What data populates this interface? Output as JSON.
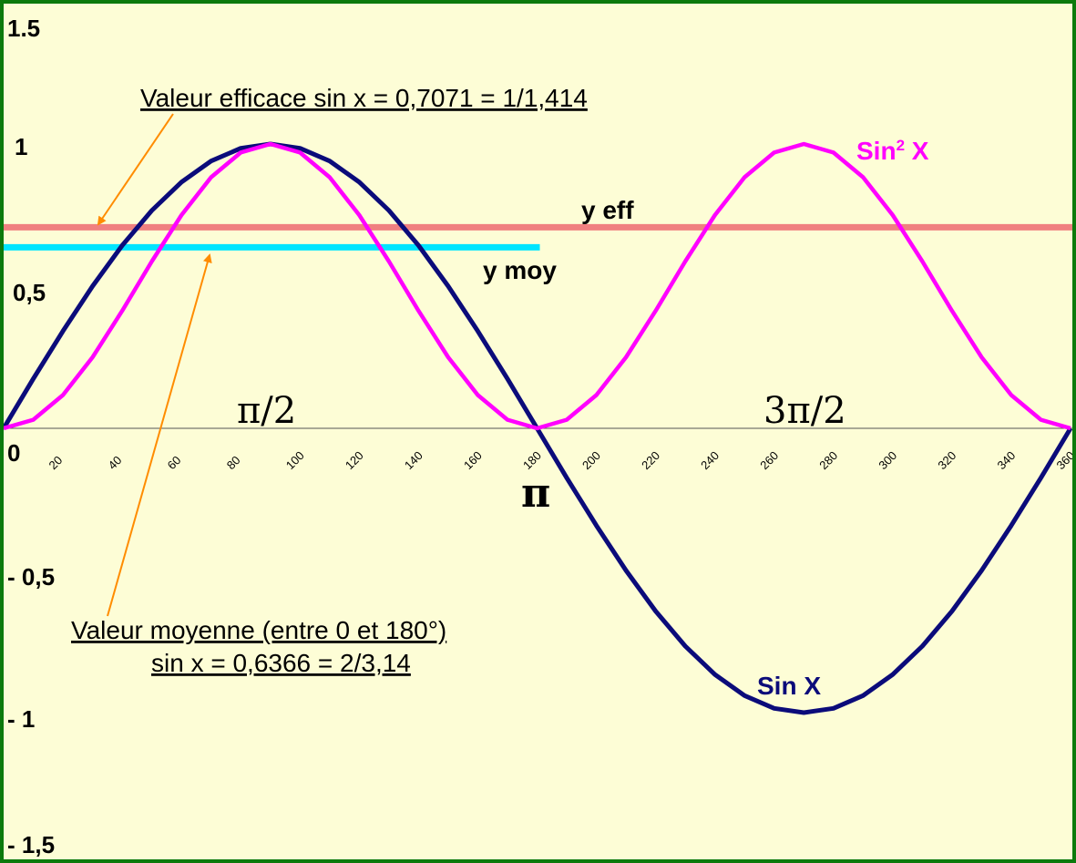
{
  "chart_data": {
    "type": "line",
    "x": [
      0,
      10,
      20,
      30,
      40,
      50,
      60,
      70,
      80,
      90,
      100,
      110,
      120,
      130,
      140,
      150,
      160,
      170,
      180,
      190,
      200,
      210,
      220,
      230,
      240,
      250,
      260,
      270,
      280,
      290,
      300,
      310,
      320,
      330,
      340,
      350,
      360
    ],
    "series": [
      {
        "name": "Sin X",
        "color": "#0b0b7a",
        "values": [
          0,
          0.174,
          0.342,
          0.5,
          0.643,
          0.766,
          0.866,
          0.94,
          0.985,
          1,
          0.985,
          0.94,
          0.866,
          0.766,
          0.643,
          0.5,
          0.342,
          0.174,
          0,
          -0.174,
          -0.342,
          -0.5,
          -0.643,
          -0.766,
          -0.866,
          -0.94,
          -0.985,
          -1,
          -0.985,
          -0.94,
          -0.866,
          -0.766,
          -0.643,
          -0.5,
          -0.342,
          -0.174,
          0
        ]
      },
      {
        "name": "Sin² X",
        "color": "#ff00ff",
        "values": [
          0,
          0.03,
          0.117,
          0.25,
          0.413,
          0.587,
          0.75,
          0.883,
          0.97,
          1,
          0.97,
          0.883,
          0.75,
          0.587,
          0.413,
          0.25,
          0.117,
          0.03,
          0,
          0.03,
          0.117,
          0.25,
          0.413,
          0.587,
          0.75,
          0.883,
          0.97,
          1,
          0.97,
          0.883,
          0.75,
          0.587,
          0.413,
          0.25,
          0.117,
          0.03,
          0
        ]
      }
    ],
    "series_labels": {
      "sin": "Sin X",
      "sin2_base": "Sin",
      "sin2_exp": "2",
      "sin2_var": " X"
    },
    "hlines": [
      {
        "label": "y eff",
        "value": 0.7071,
        "x_start": 0,
        "x_end": 360,
        "color": "#f08080"
      },
      {
        "label": "y moy",
        "value": 0.6366,
        "x_start": 0,
        "x_end": 180,
        "color": "#00e5ff"
      }
    ],
    "xlim": [
      0,
      360
    ],
    "ylim": [
      -1.5,
      1.5
    ],
    "xticks": [
      "20",
      "40",
      "60",
      "80",
      "100",
      "120",
      "140",
      "160",
      "180",
      "200",
      "220",
      "240",
      "260",
      "280",
      "300",
      "320",
      "340",
      "360"
    ],
    "yticks": [
      {
        "label": "1.5",
        "value": 1.5
      },
      {
        "label": "1",
        "value": 1
      },
      {
        "label": "0,5",
        "value": 0.5
      },
      {
        "label": "0",
        "value": 0
      },
      {
        "label": "- 0,5",
        "value": -0.5
      },
      {
        "label": "- 1",
        "value": -1
      },
      {
        "label": "- 1,5",
        "value": -1.5
      }
    ],
    "annotations": {
      "eff": "Valeur efficace sin x = 0,7071 = 1/1,414",
      "moy_line1": "Valeur moyenne (entre 0 et 180°)",
      "moy_line2": "sin x = 0,6366 = 2/3,14",
      "pi_half": "π/2",
      "pi": "π",
      "three_pi_half": "3π/2"
    },
    "arrow_color": "#ff8c00"
  }
}
